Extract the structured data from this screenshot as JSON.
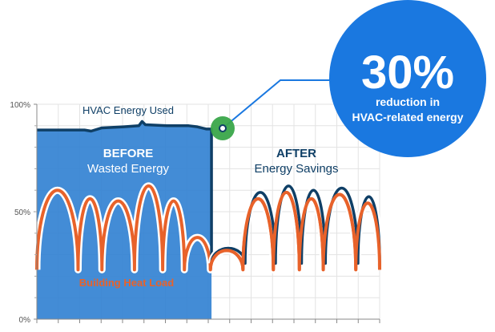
{
  "colors": {
    "hvac_line": "#0f3f66",
    "before_fill": "#2f7fd1",
    "heat_load": "#e8622a",
    "callout": "#1a78e0",
    "marker": "#3aa64a",
    "grid": "#e3e3e3",
    "white": "#ffffff"
  },
  "labels": {
    "hvac_energy": "HVAC Energy Used",
    "before_title": "BEFORE",
    "before_sub": "Wasted Energy",
    "after_title": "AFTER",
    "after_sub": "Energy Savings",
    "heat_load": "Building Heat Load"
  },
  "callout": {
    "value": "30%",
    "line1": "reduction in",
    "line2": "HVAC-related energy"
  },
  "chart_data": {
    "type": "line",
    "title": "",
    "xlabel": "",
    "ylabel": "",
    "ylim": [
      0,
      100
    ],
    "yticks": [
      {
        "value": 0,
        "label": "0%"
      },
      {
        "value": 50,
        "label": "50%"
      },
      {
        "value": 100,
        "label": "100%"
      }
    ],
    "switch_x": 8.05,
    "xlim": [
      0,
      15.8
    ],
    "series": [
      {
        "key": "hvac_before",
        "points": [
          [
            0,
            88
          ],
          [
            1.5,
            88
          ],
          [
            2.2,
            88
          ],
          [
            2.5,
            87.5
          ],
          [
            3.0,
            89
          ],
          [
            4.0,
            89.5
          ],
          [
            4.7,
            90
          ],
          [
            4.85,
            92
          ],
          [
            5.0,
            90.5
          ],
          [
            6.0,
            90
          ],
          [
            7.0,
            90
          ],
          [
            7.4,
            89.5
          ],
          [
            7.8,
            88.5
          ],
          [
            8.05,
            88.5
          ]
        ]
      },
      {
        "key": "heat_load",
        "humps": [
          {
            "start": 0,
            "end": 1.9,
            "peak": 60
          },
          {
            "start": 1.9,
            "end": 3.0,
            "peak": 56
          },
          {
            "start": 3.0,
            "end": 4.5,
            "peak": 55
          },
          {
            "start": 4.5,
            "end": 5.8,
            "peak": 62
          },
          {
            "start": 5.8,
            "end": 6.8,
            "peak": 55
          },
          {
            "start": 6.8,
            "end": 8.0,
            "peak": 38
          },
          {
            "start": 8.0,
            "end": 9.5,
            "peak": 32
          },
          {
            "start": 9.5,
            "end": 10.9,
            "peak": 56
          },
          {
            "start": 10.9,
            "end": 12.1,
            "peak": 59
          },
          {
            "start": 12.1,
            "end": 13.2,
            "peak": 56
          },
          {
            "start": 13.2,
            "end": 14.7,
            "peak": 58
          },
          {
            "start": 14.7,
            "end": 15.8,
            "peak": 54
          }
        ],
        "base": 23
      },
      {
        "key": "hvac_after",
        "humps": [
          {
            "start": 8.05,
            "end": 9.6,
            "peak": 33
          },
          {
            "start": 9.6,
            "end": 11.0,
            "peak": 59
          },
          {
            "start": 11.0,
            "end": 12.2,
            "peak": 62
          },
          {
            "start": 12.2,
            "end": 13.3,
            "peak": 60
          },
          {
            "start": 13.3,
            "end": 14.8,
            "peak": 61
          },
          {
            "start": 14.8,
            "end": 15.8,
            "peak": 57
          }
        ],
        "base": 26
      }
    ]
  }
}
